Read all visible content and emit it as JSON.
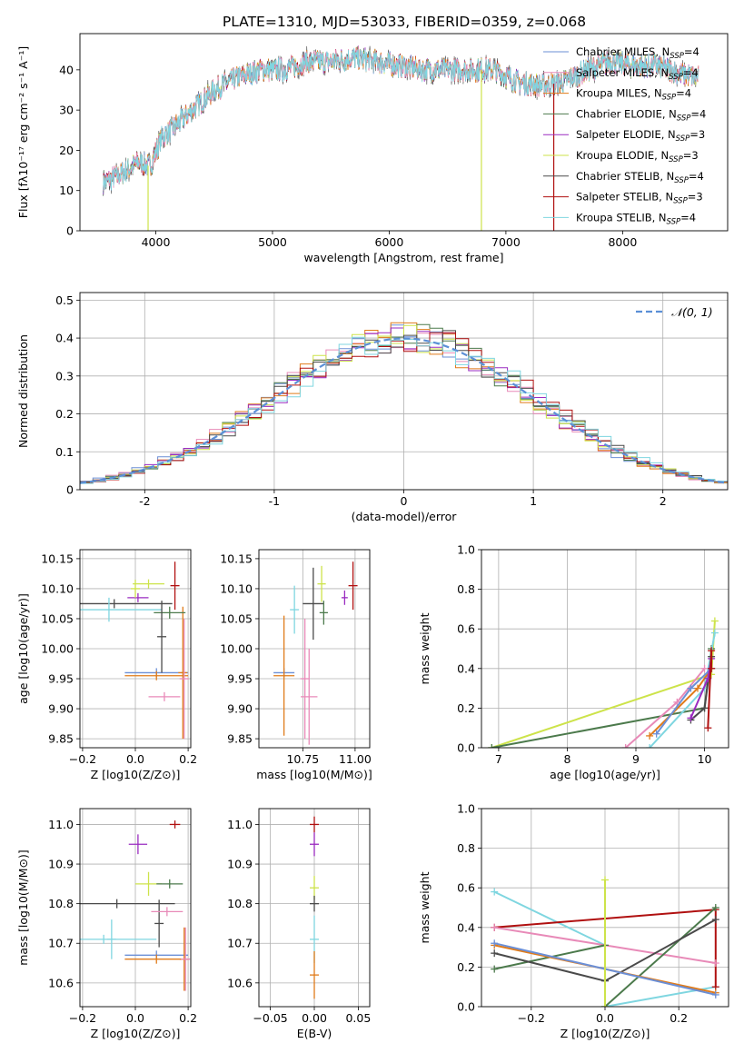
{
  "figure_title": "PLATE=1310, MJD=53033, FIBERID=0359, z=0.068",
  "colors": {
    "Chabrier MILES": "#6b8fd6",
    "Salpeter MILES": "#e88ab8",
    "Kroupa MILES": "#e07b1a",
    "Chabrier ELODIE": "#4c7a4c",
    "Salpeter ELODIE": "#9a2bc0",
    "Kroupa ELODIE": "#cde34a",
    "Chabrier STELIB": "#4a4a4a",
    "Salpeter STELIB": "#b01010",
    "Kroupa STELIB": "#7fd6e0"
  },
  "chart_data": [
    {
      "id": "spectrum",
      "type": "line",
      "title": "PLATE=1310, MJD=53033, FIBERID=0359, z=0.068",
      "xlabel": "wavelength [Angstrom, rest frame]",
      "ylabel": "Flux [fλ10⁻¹⁷ erg cm⁻² s⁻¹ A⁻¹]",
      "xlim": [
        3350,
        8900
      ],
      "ylim": [
        0,
        49
      ],
      "xticks": [
        4000,
        5000,
        6000,
        7000,
        8000
      ],
      "yticks": [
        0,
        10,
        20,
        30,
        40
      ],
      "grid": false,
      "legend_position": "top-right",
      "legend": [
        "Chabrier MILES, N_SSP=4",
        "Salpeter MILES, N_SSP=4",
        "Kroupa MILES, N_SSP=4",
        "Chabrier ELODIE, N_SSP=4",
        "Salpeter ELODIE, N_SSP=3",
        "Kroupa ELODIE, N_SSP=3",
        "Chabrier STELIB, N_SSP=4",
        "Salpeter STELIB, N_SSP=3",
        "Kroupa STELIB, N_SSP=4"
      ],
      "continuum_x": [
        3550,
        3700,
        3850,
        3950,
        4050,
        4200,
        4350,
        4500,
        4700,
        4900,
        5100,
        5300,
        5500,
        5700,
        5900,
        6100,
        6300,
        6500,
        6700,
        6900,
        7100,
        7300,
        7500,
        7700,
        7900,
        8100,
        8300,
        8500,
        8650
      ],
      "continuum_y": [
        12,
        14,
        17,
        16,
        23,
        27,
        31,
        35,
        38,
        40,
        40,
        42,
        42,
        43,
        42,
        41,
        40,
        40,
        40,
        40,
        37,
        36,
        37,
        40,
        42,
        41,
        41,
        39,
        38
      ],
      "spikes": [
        {
          "x": 3934,
          "y": 0,
          "series": "Kroupa ELODIE"
        },
        {
          "x": 6790,
          "y": 0,
          "series": "Kroupa ELODIE"
        },
        {
          "x": 7410,
          "y": 0,
          "series": "Salpeter STELIB"
        }
      ]
    },
    {
      "id": "residuals",
      "type": "line",
      "xlabel": "(data-model)/error",
      "ylabel": "Normed distribution",
      "xlim": [
        -2.5,
        2.5
      ],
      "ylim": [
        0,
        0.52
      ],
      "xticks": [
        -2,
        -1,
        0,
        1,
        2
      ],
      "yticks": [
        0.0,
        0.1,
        0.2,
        0.3,
        0.4,
        0.5
      ],
      "grid": true,
      "legend_position": "top-right",
      "legend": [
        "𝒩(0, 1)"
      ],
      "normal_curve": {
        "mean": 0,
        "sigma": 1,
        "style": "dashed",
        "color": "#5b8fd6"
      }
    },
    {
      "id": "age-vs-Z",
      "type": "scatter",
      "xlabel": "Z [log10(Z/Z⊙)]",
      "ylabel": "age [log10(age/yr)]",
      "xlim": [
        -0.21,
        0.21
      ],
      "ylim": [
        9.835,
        10.165
      ],
      "xticks": [
        -0.2,
        0.0,
        0.2
      ],
      "xtick_labels": [
        "−0.2",
        "0.0",
        "0.2"
      ],
      "yticks": [
        9.85,
        9.9,
        9.95,
        10.0,
        10.05,
        10.1,
        10.15
      ],
      "ytick_labels": [
        "9.85",
        "9.90",
        "9.95",
        "10.00",
        "10.05",
        "10.10",
        "10.15"
      ],
      "grid": true,
      "points": [
        {
          "series": "Chabrier MILES",
          "x": 0.08,
          "y": 9.96,
          "xerr": 0.12,
          "yerr": 0.0
        },
        {
          "series": "Kroupa MILES",
          "x": 0.08,
          "y": 9.955,
          "xerr": 0.12,
          "yerr": 0.0
        },
        {
          "series": "Salpeter MILES",
          "x": 0.11,
          "y": 9.92,
          "xerr": 0.06,
          "yerr": 0.0
        },
        {
          "series": "Kroupa MILES",
          "x": 0.18,
          "y": 9.96,
          "xerr": 0.0,
          "yerr": 0.11
        },
        {
          "series": "Salpeter MILES",
          "x": 0.185,
          "y": 9.95,
          "xerr": 0.0,
          "yerr": 0.1
        },
        {
          "series": "Chabrier STELIB",
          "x": -0.08,
          "y": 10.075,
          "xerr": 0.22,
          "yerr": 0.0
        },
        {
          "series": "Kroupa STELIB",
          "x": -0.1,
          "y": 10.065,
          "xerr": 0.2,
          "yerr": 0.02
        },
        {
          "series": "Kroupa ELODIE",
          "x": 0.05,
          "y": 10.108,
          "xerr": 0.06,
          "yerr": 0.0
        },
        {
          "series": "Salpeter ELODIE",
          "x": 0.01,
          "y": 10.085,
          "xerr": 0.04,
          "yerr": 0.0
        },
        {
          "series": "Chabrier ELODIE",
          "x": 0.13,
          "y": 10.06,
          "xerr": 0.06,
          "yerr": 0.01
        },
        {
          "series": "Salpeter STELIB",
          "x": 0.15,
          "y": 10.105,
          "xerr": 0.0,
          "yerr": 0.04
        },
        {
          "series": "Chabrier STELIB",
          "x": 0.1,
          "y": 10.02,
          "xerr": 0.0,
          "yerr": 0.06
        },
        {
          "series": "Kroupa ELODIE",
          "x": 0.0,
          "y": 10.1,
          "xerr": 0.0,
          "yerr": 0.015
        }
      ]
    },
    {
      "id": "age-vs-mass",
      "type": "scatter",
      "xlabel": "mass [log10(M/M⊙)]",
      "xlim": [
        10.54,
        11.07
      ],
      "ylim": [
        9.835,
        10.165
      ],
      "xticks": [
        10.75,
        11.0
      ],
      "xtick_labels": [
        "10.75",
        "11.00"
      ],
      "yticks": [
        9.85,
        9.9,
        9.95,
        10.0,
        10.05,
        10.1,
        10.15
      ],
      "ytick_labels": [
        "9.85",
        "9.90",
        "9.95",
        "10.00",
        "10.05",
        "10.10",
        "10.15"
      ],
      "grid": true,
      "points": [
        {
          "series": "Chabrier MILES",
          "x": 10.66,
          "y": 9.96,
          "xerr": 0.05,
          "yerr": 0.0
        },
        {
          "series": "Kroupa MILES",
          "x": 10.66,
          "y": 9.955,
          "xerr": 0.05,
          "yerr": 0.1
        },
        {
          "series": "Salpeter MILES",
          "x": 10.78,
          "y": 9.92,
          "xerr": 0.04,
          "yerr": 0.08
        },
        {
          "series": "Kroupa STELIB",
          "x": 10.71,
          "y": 10.065,
          "xerr": 0.0,
          "yerr": 0.04
        },
        {
          "series": "Chabrier STELIB",
          "x": 10.8,
          "y": 10.075,
          "xerr": 0.05,
          "yerr": 0.06
        },
        {
          "series": "Chabrier ELODIE",
          "x": 10.85,
          "y": 10.06,
          "xerr": 0.02,
          "yerr": 0.02
        },
        {
          "series": "Kroupa ELODIE",
          "x": 10.84,
          "y": 10.108,
          "xerr": 0.02,
          "yerr": 0.03
        },
        {
          "series": "Salpeter ELODIE",
          "x": 10.95,
          "y": 10.085,
          "xerr": 0.015,
          "yerr": 0.012
        },
        {
          "series": "Salpeter STELIB",
          "x": 10.99,
          "y": 10.105,
          "xerr": 0.0,
          "yerr": 0.04
        },
        {
          "series": "Salpeter MILES",
          "x": 10.76,
          "y": 9.95,
          "xerr": 0.0,
          "yerr": 0.1
        }
      ]
    },
    {
      "id": "weight-vs-age",
      "type": "line",
      "xlabel": "age [log10(age/yr)]",
      "ylabel": "mass weight",
      "xlim": [
        6.75,
        10.35
      ],
      "ylim": [
        0,
        1
      ],
      "xticks": [
        7,
        8,
        9,
        10
      ],
      "yticks": [
        0.0,
        0.2,
        0.4,
        0.6,
        0.8,
        1.0
      ],
      "ytick_labels": [
        "0.0",
        "0.2",
        "0.4",
        "0.6",
        "0.8",
        "1.0"
      ],
      "grid": true,
      "series": [
        {
          "name": "Kroupa ELODIE",
          "x": [
            6.9,
            10.1,
            10.15
          ],
          "y": [
            0.0,
            0.37,
            0.64
          ]
        },
        {
          "name": "Chabrier ELODIE",
          "x": [
            6.9,
            10.0,
            10.1
          ],
          "y": [
            0.0,
            0.2,
            0.5
          ]
        },
        {
          "name": "Salpeter MILES",
          "x": [
            8.85,
            9.6,
            10.0
          ],
          "y": [
            0.0,
            0.23,
            0.4
          ]
        },
        {
          "name": "Kroupa STELIB",
          "x": [
            9.2,
            10.0,
            10.15
          ],
          "y": [
            0.0,
            0.3,
            0.58
          ]
        },
        {
          "name": "Kroupa MILES",
          "x": [
            9.2,
            9.9,
            10.1
          ],
          "y": [
            0.06,
            0.3,
            0.4
          ]
        },
        {
          "name": "Chabrier MILES",
          "x": [
            9.3,
            9.8,
            10.1
          ],
          "y": [
            0.07,
            0.3,
            0.4
          ]
        },
        {
          "name": "Chabrier STELIB",
          "x": [
            9.8,
            10.0,
            10.1
          ],
          "y": [
            0.14,
            0.2,
            0.46
          ]
        },
        {
          "name": "Salpeter ELODIE",
          "x": [
            9.8,
            10.05,
            10.1
          ],
          "y": [
            0.15,
            0.35,
            0.45
          ]
        },
        {
          "name": "Salpeter STELIB",
          "x": [
            10.05,
            10.1,
            10.1
          ],
          "y": [
            0.1,
            0.49,
            0.4
          ]
        }
      ]
    },
    {
      "id": "mass-vs-Z",
      "type": "scatter",
      "xlabel": "Z [log10(Z/Z⊙)]",
      "ylabel": "mass [log10(M/M⊙)]",
      "xlim": [
        -0.21,
        0.21
      ],
      "ylim": [
        10.54,
        11.04
      ],
      "xticks": [
        -0.2,
        0.0,
        0.2
      ],
      "xtick_labels": [
        "−0.2",
        "0.0",
        "0.2"
      ],
      "yticks": [
        10.6,
        10.7,
        10.8,
        10.9,
        11.0
      ],
      "ytick_labels": [
        "10.6",
        "10.7",
        "10.8",
        "10.9",
        "11.0"
      ],
      "grid": true,
      "points": [
        {
          "series": "Salpeter STELIB",
          "x": 0.15,
          "y": 11.0,
          "xerr": 0.02,
          "yerr": 0.01
        },
        {
          "series": "Salpeter ELODIE",
          "x": 0.01,
          "y": 10.95,
          "xerr": 0.035,
          "yerr": 0.025
        },
        {
          "series": "Kroupa ELODIE",
          "x": 0.05,
          "y": 10.85,
          "xerr": 0.05,
          "yerr": 0.03
        },
        {
          "series": "Chabrier ELODIE",
          "x": 0.13,
          "y": 10.85,
          "xerr": 0.05,
          "yerr": 0.0
        },
        {
          "series": "Chabrier STELIB",
          "x": -0.07,
          "y": 10.8,
          "xerr": 0.22,
          "yerr": 0.0
        },
        {
          "series": "Chabrier STELIB",
          "x": 0.09,
          "y": 10.75,
          "xerr": 0.0,
          "yerr": 0.06
        },
        {
          "series": "Salpeter MILES",
          "x": 0.12,
          "y": 10.78,
          "xerr": 0.06,
          "yerr": 0.0
        },
        {
          "series": "Kroupa STELIB",
          "x": -0.12,
          "y": 10.71,
          "xerr": 0.2,
          "yerr": 0.0
        },
        {
          "series": "Kroupa STELIB",
          "x": -0.09,
          "y": 10.71,
          "xerr": 0.0,
          "yerr": 0.05
        },
        {
          "series": "Chabrier MILES",
          "x": 0.08,
          "y": 10.67,
          "xerr": 0.12,
          "yerr": 0.0
        },
        {
          "series": "Kroupa MILES",
          "x": 0.08,
          "y": 10.66,
          "xerr": 0.12,
          "yerr": 0.0
        },
        {
          "series": "Kroupa MILES",
          "x": 0.185,
          "y": 10.66,
          "xerr": 0.0,
          "yerr": 0.08
        },
        {
          "series": "Salpeter MILES",
          "x": 0.19,
          "y": 10.66,
          "xerr": 0.0,
          "yerr": 0.08
        }
      ]
    },
    {
      "id": "mass-vs-EBV",
      "type": "scatter",
      "xlabel": "E(B-V)",
      "xlim": [
        -0.063,
        0.063
      ],
      "ylim": [
        10.54,
        11.04
      ],
      "xticks": [
        -0.05,
        0.0,
        0.05
      ],
      "xtick_labels": [
        "−0.05",
        "0.00",
        "0.05"
      ],
      "yticks": [
        10.6,
        10.7,
        10.8,
        10.9,
        11.0
      ],
      "ytick_labels": [
        "10.6",
        "10.7",
        "10.8",
        "10.9",
        "11.0"
      ],
      "grid": true,
      "points": [
        {
          "series": "Salpeter STELIB",
          "x": 0.0,
          "y": 11.0,
          "xerr": 0.0,
          "yerr": 0.02
        },
        {
          "series": "Salpeter ELODIE",
          "x": 0.0,
          "y": 10.95,
          "xerr": 0.0,
          "yerr": 0.03
        },
        {
          "series": "Kroupa ELODIE",
          "x": 0.0,
          "y": 10.84,
          "xerr": 0.0,
          "yerr": 0.03
        },
        {
          "series": "Chabrier STELIB",
          "x": 0.0,
          "y": 10.8,
          "xerr": 0.0,
          "yerr": 0.02
        },
        {
          "series": "Kroupa STELIB",
          "x": 0.0,
          "y": 10.71,
          "xerr": 0.0,
          "yerr": 0.06
        },
        {
          "series": "Kroupa MILES",
          "x": 0.0,
          "y": 10.62,
          "xerr": 0.0,
          "yerr": 0.06
        }
      ]
    },
    {
      "id": "weight-vs-Z",
      "type": "line",
      "xlabel": "Z [log10(Z/Z⊙)]",
      "ylabel": "mass weight",
      "xlim": [
        -0.335,
        0.335
      ],
      "ylim": [
        0,
        1
      ],
      "xticks": [
        -0.2,
        0.0,
        0.2
      ],
      "xtick_labels": [
        "−0.2",
        "0.0",
        "0.2"
      ],
      "yticks": [
        0.0,
        0.2,
        0.4,
        0.6,
        0.8,
        1.0
      ],
      "ytick_labels": [
        "0.0",
        "0.2",
        "0.4",
        "0.6",
        "0.8",
        "1.0"
      ],
      "grid": true,
      "series": [
        {
          "name": "Kroupa STELIB",
          "x": [
            -0.3,
            0.0,
            0.0,
            0.3
          ],
          "y": [
            0.58,
            0.31,
            0.0,
            0.1
          ]
        },
        {
          "name": "Salpeter STELIB",
          "x": [
            -0.3,
            0.3,
            0.3
          ],
          "y": [
            0.4,
            0.49,
            0.1
          ]
        },
        {
          "name": "Salpeter MILES",
          "x": [
            -0.3,
            0.0,
            0.3
          ],
          "y": [
            0.4,
            0.31,
            0.22
          ]
        },
        {
          "name": "Chabrier ELODIE",
          "x": [
            -0.3,
            0.0,
            0.0,
            0.3
          ],
          "y": [
            0.19,
            0.31,
            0.0,
            0.5
          ]
        },
        {
          "name": "Chabrier STELIB",
          "x": [
            -0.3,
            0.0,
            0.3
          ],
          "y": [
            0.27,
            0.13,
            0.44
          ]
        },
        {
          "name": "Kroupa MILES",
          "x": [
            -0.3,
            0.3
          ],
          "y": [
            0.31,
            0.07
          ]
        },
        {
          "name": "Chabrier MILES",
          "x": [
            -0.3,
            0.3
          ],
          "y": [
            0.32,
            0.06
          ]
        },
        {
          "name": "Kroupa ELODIE",
          "x": [
            0.0,
            0.0
          ],
          "y": [
            0.0,
            0.64
          ]
        }
      ]
    }
  ]
}
